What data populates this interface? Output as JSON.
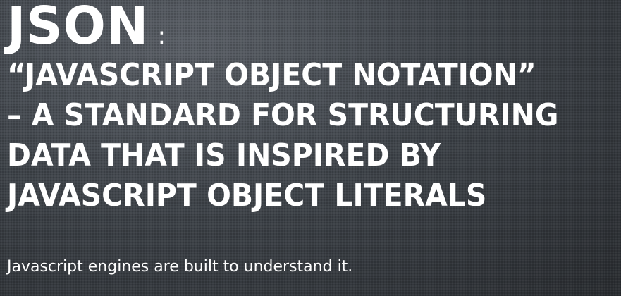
{
  "slide": {
    "title": "JSON",
    "title_punct": ":",
    "definition_lines": [
      "“JAVASCRIPT OBJECT NOTATION”",
      "– A STANDARD FOR STRUCTURING",
      "DATA THAT IS INSPIRED BY",
      "JAVASCRIPT OBJECT LITERALS"
    ],
    "subtitle": "Javascript engines are built to understand it."
  }
}
